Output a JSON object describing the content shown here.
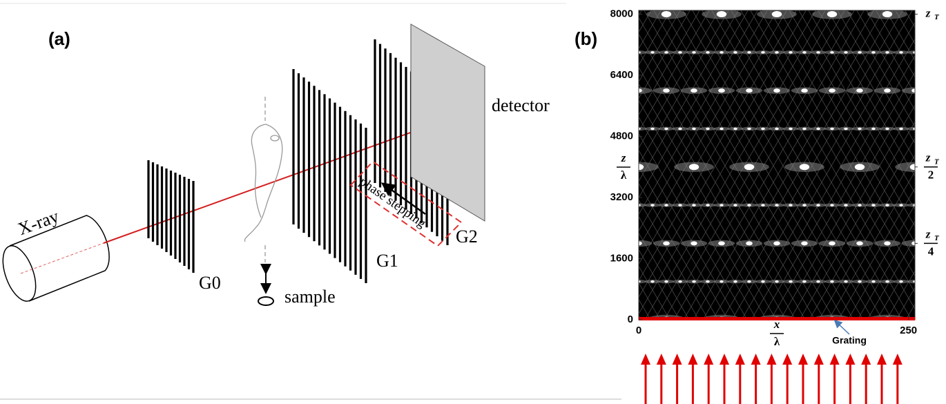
{
  "panel_a": {
    "label": "(a)",
    "source": "X-ray",
    "gratings": [
      "G0",
      "G1",
      "G2"
    ],
    "sample": "sample",
    "detector": "detector",
    "phase_stepping": "phase stepping"
  },
  "panel_b": {
    "label": "(b)",
    "y_axis": {
      "num": "z",
      "den": "λ"
    },
    "x_axis": {
      "num": "x",
      "den": "λ"
    },
    "xlim": [
      0,
      256
    ],
    "xticks": [
      0,
      250
    ],
    "ylim": [
      0,
      8100
    ],
    "yticks": [
      0,
      1600,
      3200,
      4800,
      6400,
      8000
    ],
    "talbot_marks": [
      {
        "value": 8000,
        "num": "z",
        "sub": "T"
      },
      {
        "value": 4000,
        "num": "z",
        "sub": "T",
        "den": "2"
      },
      {
        "value": 2000,
        "num": "z",
        "sub": "T",
        "den": "4"
      }
    ],
    "grating_label": "Grating"
  }
}
